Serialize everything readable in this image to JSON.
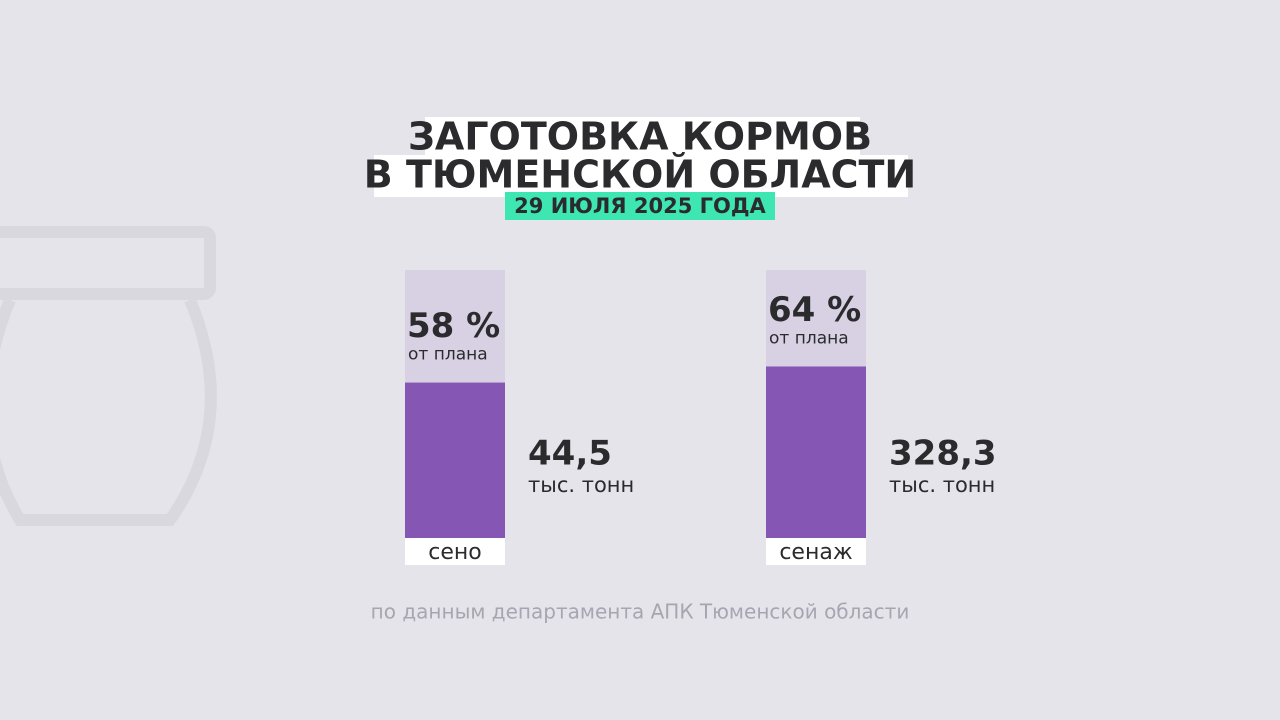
{
  "chart_data": {
    "type": "bar",
    "title": [
      "ЗАГОТОВКА КОРМОВ",
      "В ТЮМЕНСКОЙ ОБЛАСТИ"
    ],
    "subtitle": "29 ИЮЛЯ 2025 ГОДА",
    "categories": [
      "сено",
      "сенаж"
    ],
    "values": [
      58,
      64
    ],
    "value_labels": [
      "58 %",
      "64 %"
    ],
    "plan_label": "от плана",
    "amounts": [
      44.5,
      328.3
    ],
    "amount_labels": [
      "44,5",
      "328,3"
    ],
    "amount_unit": "тыс. тонн",
    "ylim": [
      0,
      100
    ],
    "color": "#8656b4",
    "track_color": "#d7d1e3",
    "source": "по данным департамента АПК Тюменской области"
  }
}
